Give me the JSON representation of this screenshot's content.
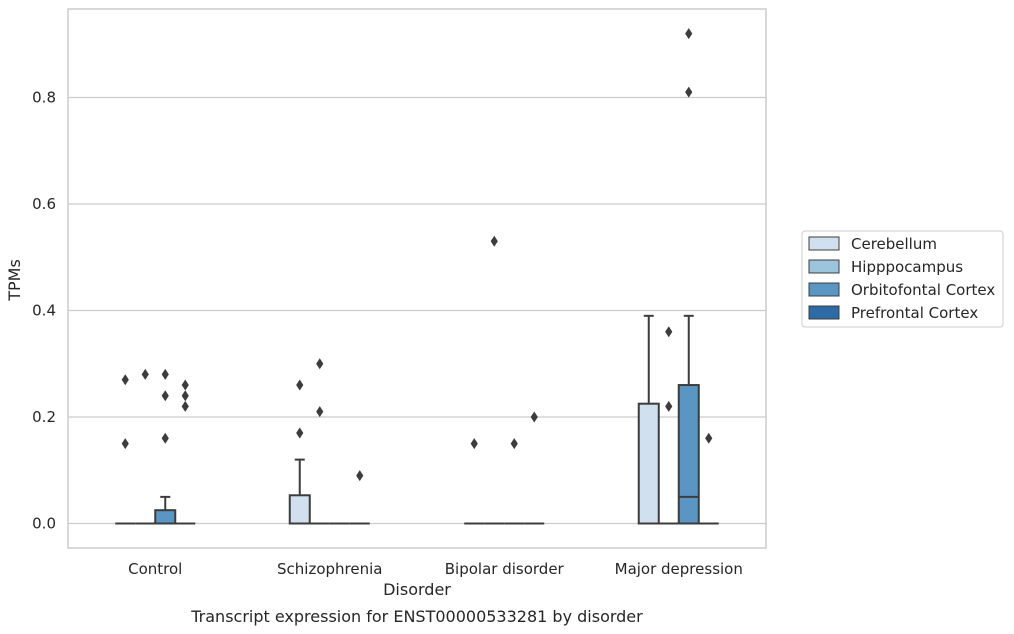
{
  "chart_data": {
    "type": "box",
    "title": "Transcript expression for ENST00000533281 by disorder",
    "xlabel": "Disorder",
    "ylabel": "TPMs",
    "ylim": [
      -0.045,
      0.968
    ],
    "yticks": [
      "0.0",
      "0.2",
      "0.4",
      "0.6",
      "0.8"
    ],
    "grid": true,
    "legend_position": "right",
    "categories": [
      "Control",
      "Schizophrenia",
      "Bipolar disorder",
      "Major depression"
    ],
    "series": [
      {
        "name": "Cerebellum",
        "color": "#d0e0ef",
        "boxes": [
          {
            "q1": 0,
            "median": 0,
            "q3": 0,
            "whislo": 0,
            "whishi": 0,
            "fliers": [
              0.27,
              0.15
            ]
          },
          {
            "q1": 0,
            "median": 0,
            "q3": 0.053,
            "whislo": 0,
            "whishi": 0.12,
            "fliers": [
              0.26,
              0.17
            ]
          },
          {
            "q1": 0,
            "median": 0,
            "q3": 0,
            "whislo": 0,
            "whishi": 0,
            "fliers": [
              0.15
            ]
          },
          {
            "q1": 0,
            "median": 0,
            "q3": 0.225,
            "whislo": 0,
            "whishi": 0.39,
            "fliers": []
          }
        ]
      },
      {
        "name": "Hipppocampus",
        "color": "#9dc4dd",
        "boxes": [
          {
            "q1": 0,
            "median": 0,
            "q3": 0,
            "whislo": 0,
            "whishi": 0,
            "fliers": [
              0.28
            ]
          },
          {
            "q1": 0,
            "median": 0,
            "q3": 0,
            "whislo": 0,
            "whishi": 0,
            "fliers": [
              0.3,
              0.21
            ]
          },
          {
            "q1": 0,
            "median": 0,
            "q3": 0,
            "whislo": 0,
            "whishi": 0,
            "fliers": [
              0.53
            ]
          },
          {
            "q1": 0,
            "median": 0,
            "q3": 0,
            "whislo": 0,
            "whishi": 0,
            "fliers": [
              0.36,
              0.22
            ]
          }
        ]
      },
      {
        "name": "Orbitofontal Cortex",
        "color": "#5a96c3",
        "boxes": [
          {
            "q1": 0,
            "median": 0,
            "q3": 0.025,
            "whislo": 0,
            "whishi": 0.05,
            "fliers": [
              0.28,
              0.24,
              0.16
            ]
          },
          {
            "q1": 0,
            "median": 0,
            "q3": 0,
            "whislo": 0,
            "whishi": 0,
            "fliers": []
          },
          {
            "q1": 0,
            "median": 0,
            "q3": 0,
            "whislo": 0,
            "whishi": 0,
            "fliers": [
              0.15
            ]
          },
          {
            "q1": 0,
            "median": 0.05,
            "q3": 0.26,
            "whislo": 0,
            "whishi": 0.39,
            "fliers": [
              0.92,
              0.81
            ]
          }
        ]
      },
      {
        "name": "Prefrontal Cortex",
        "color": "#2d6ba6",
        "boxes": [
          {
            "q1": 0,
            "median": 0,
            "q3": 0,
            "whislo": 0,
            "whishi": 0,
            "fliers": [
              0.26,
              0.24,
              0.22
            ]
          },
          {
            "q1": 0,
            "median": 0,
            "q3": 0,
            "whislo": 0,
            "whishi": 0,
            "fliers": [
              0.09
            ]
          },
          {
            "q1": 0,
            "median": 0,
            "q3": 0,
            "whislo": 0,
            "whishi": 0,
            "fliers": [
              0.2
            ]
          },
          {
            "q1": 0,
            "median": 0,
            "q3": 0,
            "whislo": 0,
            "whishi": 0,
            "fliers": [
              0.16
            ]
          }
        ]
      }
    ]
  }
}
